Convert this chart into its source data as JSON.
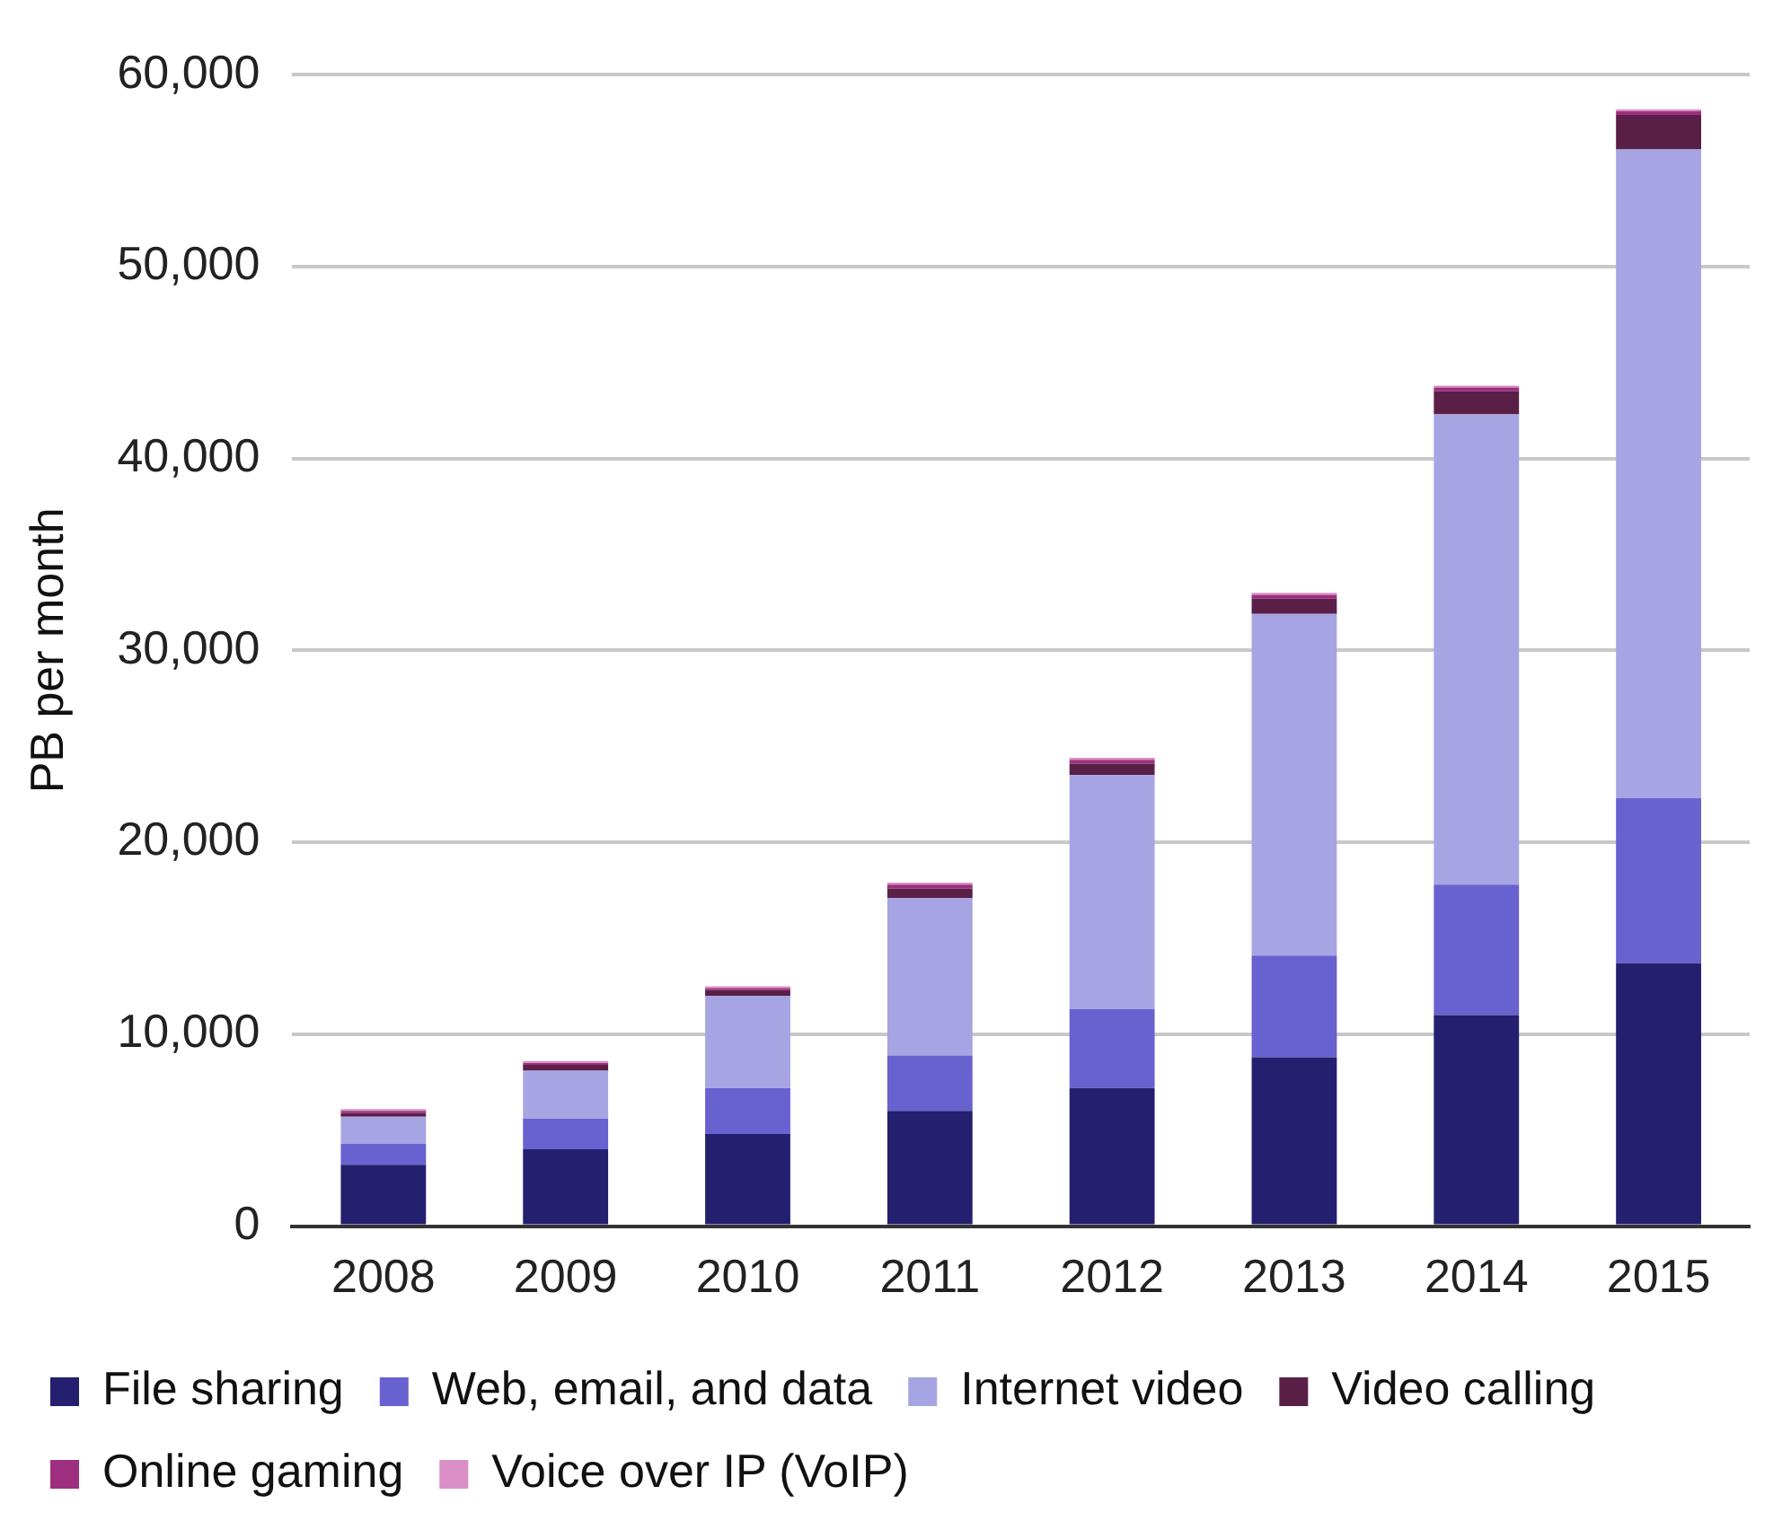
{
  "chart_data": {
    "type": "bar",
    "stacked": true,
    "ylabel": "PB per month",
    "categories": [
      "2008",
      "2009",
      "2010",
      "2011",
      "2012",
      "2013",
      "2014",
      "2015"
    ],
    "series": [
      {
        "name": "File sharing",
        "color": "#241f6e",
        "values": [
          3200,
          4000,
          4800,
          6000,
          7200,
          8800,
          11000,
          13700
        ]
      },
      {
        "name": "Web, email, and data",
        "color": "#6861d0",
        "values": [
          1100,
          1600,
          2400,
          2900,
          4100,
          5300,
          6800,
          8600
        ]
      },
      {
        "name": "Internet video",
        "color": "#a7a4e3",
        "values": [
          1400,
          2500,
          4800,
          8200,
          12200,
          17800,
          24500,
          33800
        ]
      },
      {
        "name": "Video calling",
        "color": "#5a1f47",
        "values": [
          200,
          300,
          300,
          500,
          600,
          800,
          1200,
          1800
        ]
      },
      {
        "name": "Online gaming",
        "color": "#9e2f7f",
        "values": [
          100,
          100,
          100,
          200,
          200,
          200,
          200,
          200
        ]
      },
      {
        "name": "Voice over IP (VoIP)",
        "color": "#d98fc6",
        "values": [
          100,
          100,
          100,
          100,
          100,
          100,
          100,
          100
        ]
      }
    ],
    "ylim": [
      0,
      60000
    ],
    "yticks": [
      0,
      {
        "value": 10000,
        "label": "10,000"
      },
      {
        "value": 20000,
        "label": "20,000"
      },
      {
        "value": 30000,
        "label": "30,000"
      },
      {
        "value": 40000,
        "label": "40,000"
      },
      {
        "value": 50000,
        "label": "50,000"
      },
      {
        "value": 60000,
        "label": "60,000"
      }
    ],
    "grid": "y",
    "legend": "bottom"
  }
}
